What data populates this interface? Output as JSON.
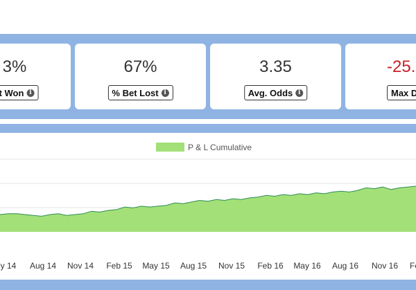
{
  "colors": {
    "band": "#8fb4e3",
    "area_fill": "#a3e077",
    "area_line": "#2e8b57",
    "negative": "#c8202a"
  },
  "stats": [
    {
      "value": "3%",
      "label": "t Won",
      "icon": "info-icon"
    },
    {
      "value": "67%",
      "label": "% Bet Lost",
      "icon": "info-icon"
    },
    {
      "value": "3.35",
      "label": "Avg. Odds",
      "icon": "info-icon"
    },
    {
      "value": "-25.",
      "label": "Max D",
      "icon": "info-icon"
    }
  ],
  "chart_data": {
    "type": "area",
    "legend": "P & L Cumulative",
    "legend_position": "top",
    "grid": true,
    "ylim": [
      -40,
      40
    ],
    "x_ticks": [
      "y 14",
      "Aug 14",
      "Nov 14",
      "Feb 15",
      "May 15",
      "Aug 15",
      "Nov 15",
      "Feb 16",
      "May 16",
      "Aug 16",
      "Nov 16",
      "Fe"
    ],
    "series": [
      {
        "values": [
          5,
          6,
          6,
          5,
          4,
          3,
          5,
          6,
          4,
          5,
          6,
          9,
          8,
          10,
          11,
          14,
          13,
          15,
          14,
          15,
          16,
          19,
          18,
          20,
          22,
          21,
          23,
          22,
          24,
          23,
          25,
          26,
          28,
          27,
          29,
          28,
          30,
          29,
          31,
          30,
          32,
          33,
          32,
          34,
          37,
          36,
          38,
          35,
          37,
          38,
          39
        ]
      }
    ]
  }
}
